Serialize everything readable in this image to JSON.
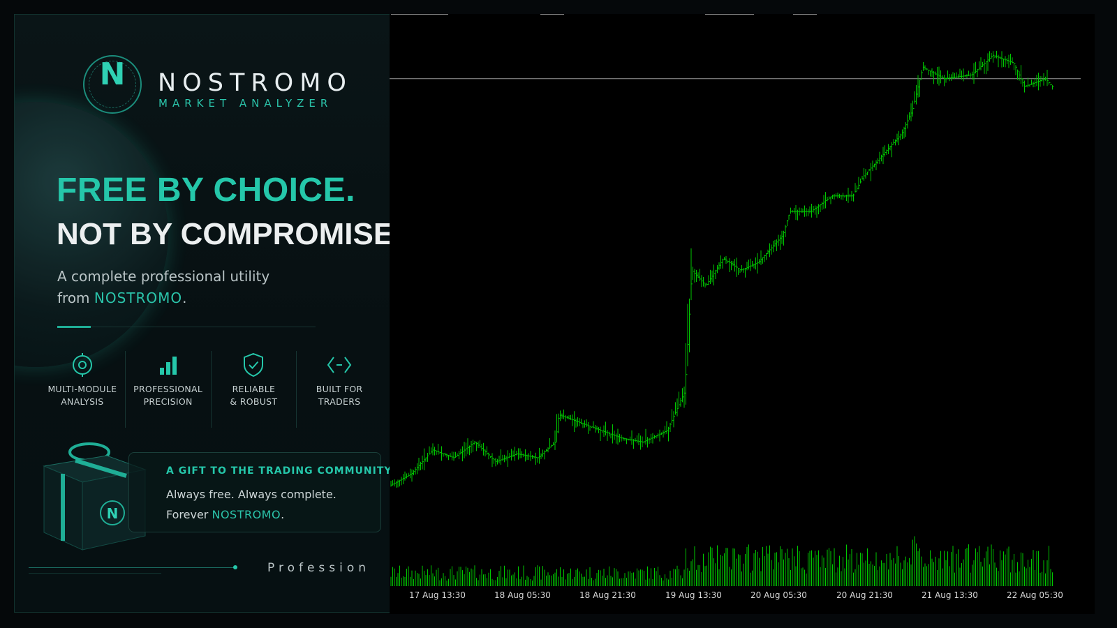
{
  "promo": {
    "logo_letter": "N",
    "brand": "NOSTROMO",
    "brand_subtitle": "MARKET ANALYZER",
    "headline_line1": "FREE BY CHOICE.",
    "headline_line2": "NOT BY COMPROMISE.",
    "subtext_line1": "A complete professional utility",
    "subtext_line2_prefix": "from ",
    "subtext_line2_brand": "NOSTROMO",
    "subtext_line2_suffix": ".",
    "features": [
      {
        "icon": "target-icon",
        "line1": "MULTI-MODULE",
        "line2": "ANALYSIS"
      },
      {
        "icon": "bar-chart-icon",
        "line1": "PROFESSIONAL",
        "line2": "PRECISION"
      },
      {
        "icon": "shield-check-icon",
        "line1": "RELIABLE",
        "line2": "& ROBUST"
      },
      {
        "icon": "code-brackets-icon",
        "line1": "BUILT FOR",
        "line2": "TRADERS"
      }
    ],
    "gift_title": "A GIFT TO THE TRADING COMMUNITY",
    "gift_line1": "Always free. Always complete.",
    "gift_line2_prefix": "Forever ",
    "gift_line2_brand": "NOSTROMO",
    "gift_line2_suffix": ".",
    "footer_text": "Profession",
    "colors": {
      "accent": "#25c7aa",
      "panel_bg": "#071012"
    }
  },
  "chart_data": {
    "type": "bar",
    "title": "",
    "series_color": "#00c800",
    "horizontal_line_color": "#9a9a9a",
    "x_tick_labels": [
      "17 Aug 13:30",
      "18 Aug 05:30",
      "18 Aug 21:30",
      "19 Aug 13:30",
      "20 Aug 05:30",
      "20 Aug 21:30",
      "21 Aug 13:30",
      "22 Aug 05:30"
    ],
    "price_anchors": [
      [
        0,
        0.08
      ],
      [
        30,
        0.11
      ],
      [
        60,
        0.17
      ],
      [
        90,
        0.15
      ],
      [
        120,
        0.19
      ],
      [
        150,
        0.14
      ],
      [
        180,
        0.16
      ],
      [
        210,
        0.15
      ],
      [
        235,
        0.19
      ],
      [
        240,
        0.26
      ],
      [
        270,
        0.24
      ],
      [
        300,
        0.22
      ],
      [
        330,
        0.2
      ],
      [
        360,
        0.19
      ],
      [
        395,
        0.22
      ],
      [
        420,
        0.32
      ],
      [
        430,
        0.63
      ],
      [
        450,
        0.59
      ],
      [
        475,
        0.66
      ],
      [
        500,
        0.63
      ],
      [
        525,
        0.65
      ],
      [
        560,
        0.72
      ],
      [
        570,
        0.78
      ],
      [
        600,
        0.78
      ],
      [
        630,
        0.82
      ],
      [
        660,
        0.82
      ],
      [
        675,
        0.87
      ],
      [
        700,
        0.92
      ],
      [
        730,
        0.98
      ],
      [
        745,
        1.04
      ],
      [
        760,
        1.15
      ],
      [
        790,
        1.12
      ],
      [
        830,
        1.13
      ],
      [
        860,
        1.18
      ],
      [
        890,
        1.16
      ],
      [
        905,
        1.1
      ],
      [
        935,
        1.12
      ],
      [
        945,
        1.1
      ]
    ],
    "volume_profile": "peaks at 19 Aug 13:30 and 21 Aug 13:30",
    "horizontal_line_level": 1.12
  }
}
